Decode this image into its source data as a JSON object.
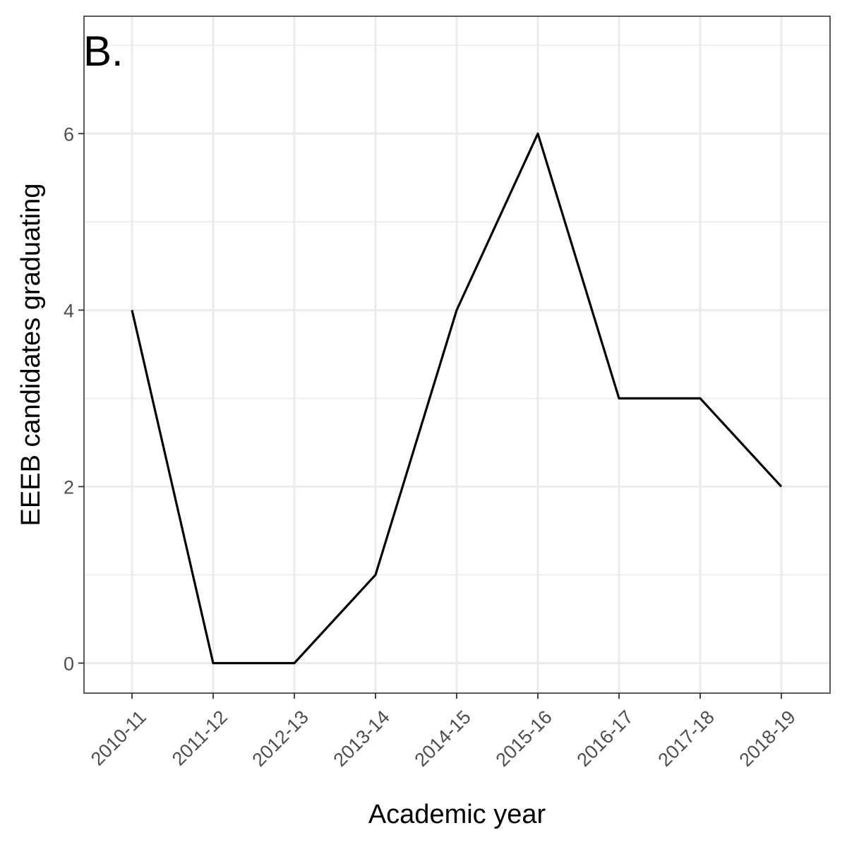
{
  "chart_data": {
    "type": "line",
    "panel_tag": "B.",
    "xlabel": "Academic year",
    "ylabel": "EEEB candidates graduating",
    "categories": [
      "2010-11",
      "2011-12",
      "2012-13",
      "2013-14",
      "2014-15",
      "2015-16",
      "2016-17",
      "2017-18",
      "2018-19"
    ],
    "series": [
      {
        "values": [
          4,
          0,
          0,
          1,
          4,
          6,
          3,
          3,
          2
        ]
      }
    ],
    "ylim": [
      -0.34,
      7.33
    ],
    "y_ticks": [
      0,
      2,
      4,
      6
    ],
    "y_minor_ticks": [
      1,
      3,
      5,
      7
    ],
    "grid": true,
    "colors": {
      "line": "#000000",
      "grid": "#ebebeb",
      "border": "#333333",
      "tick_text": "#4d4d4d"
    }
  }
}
